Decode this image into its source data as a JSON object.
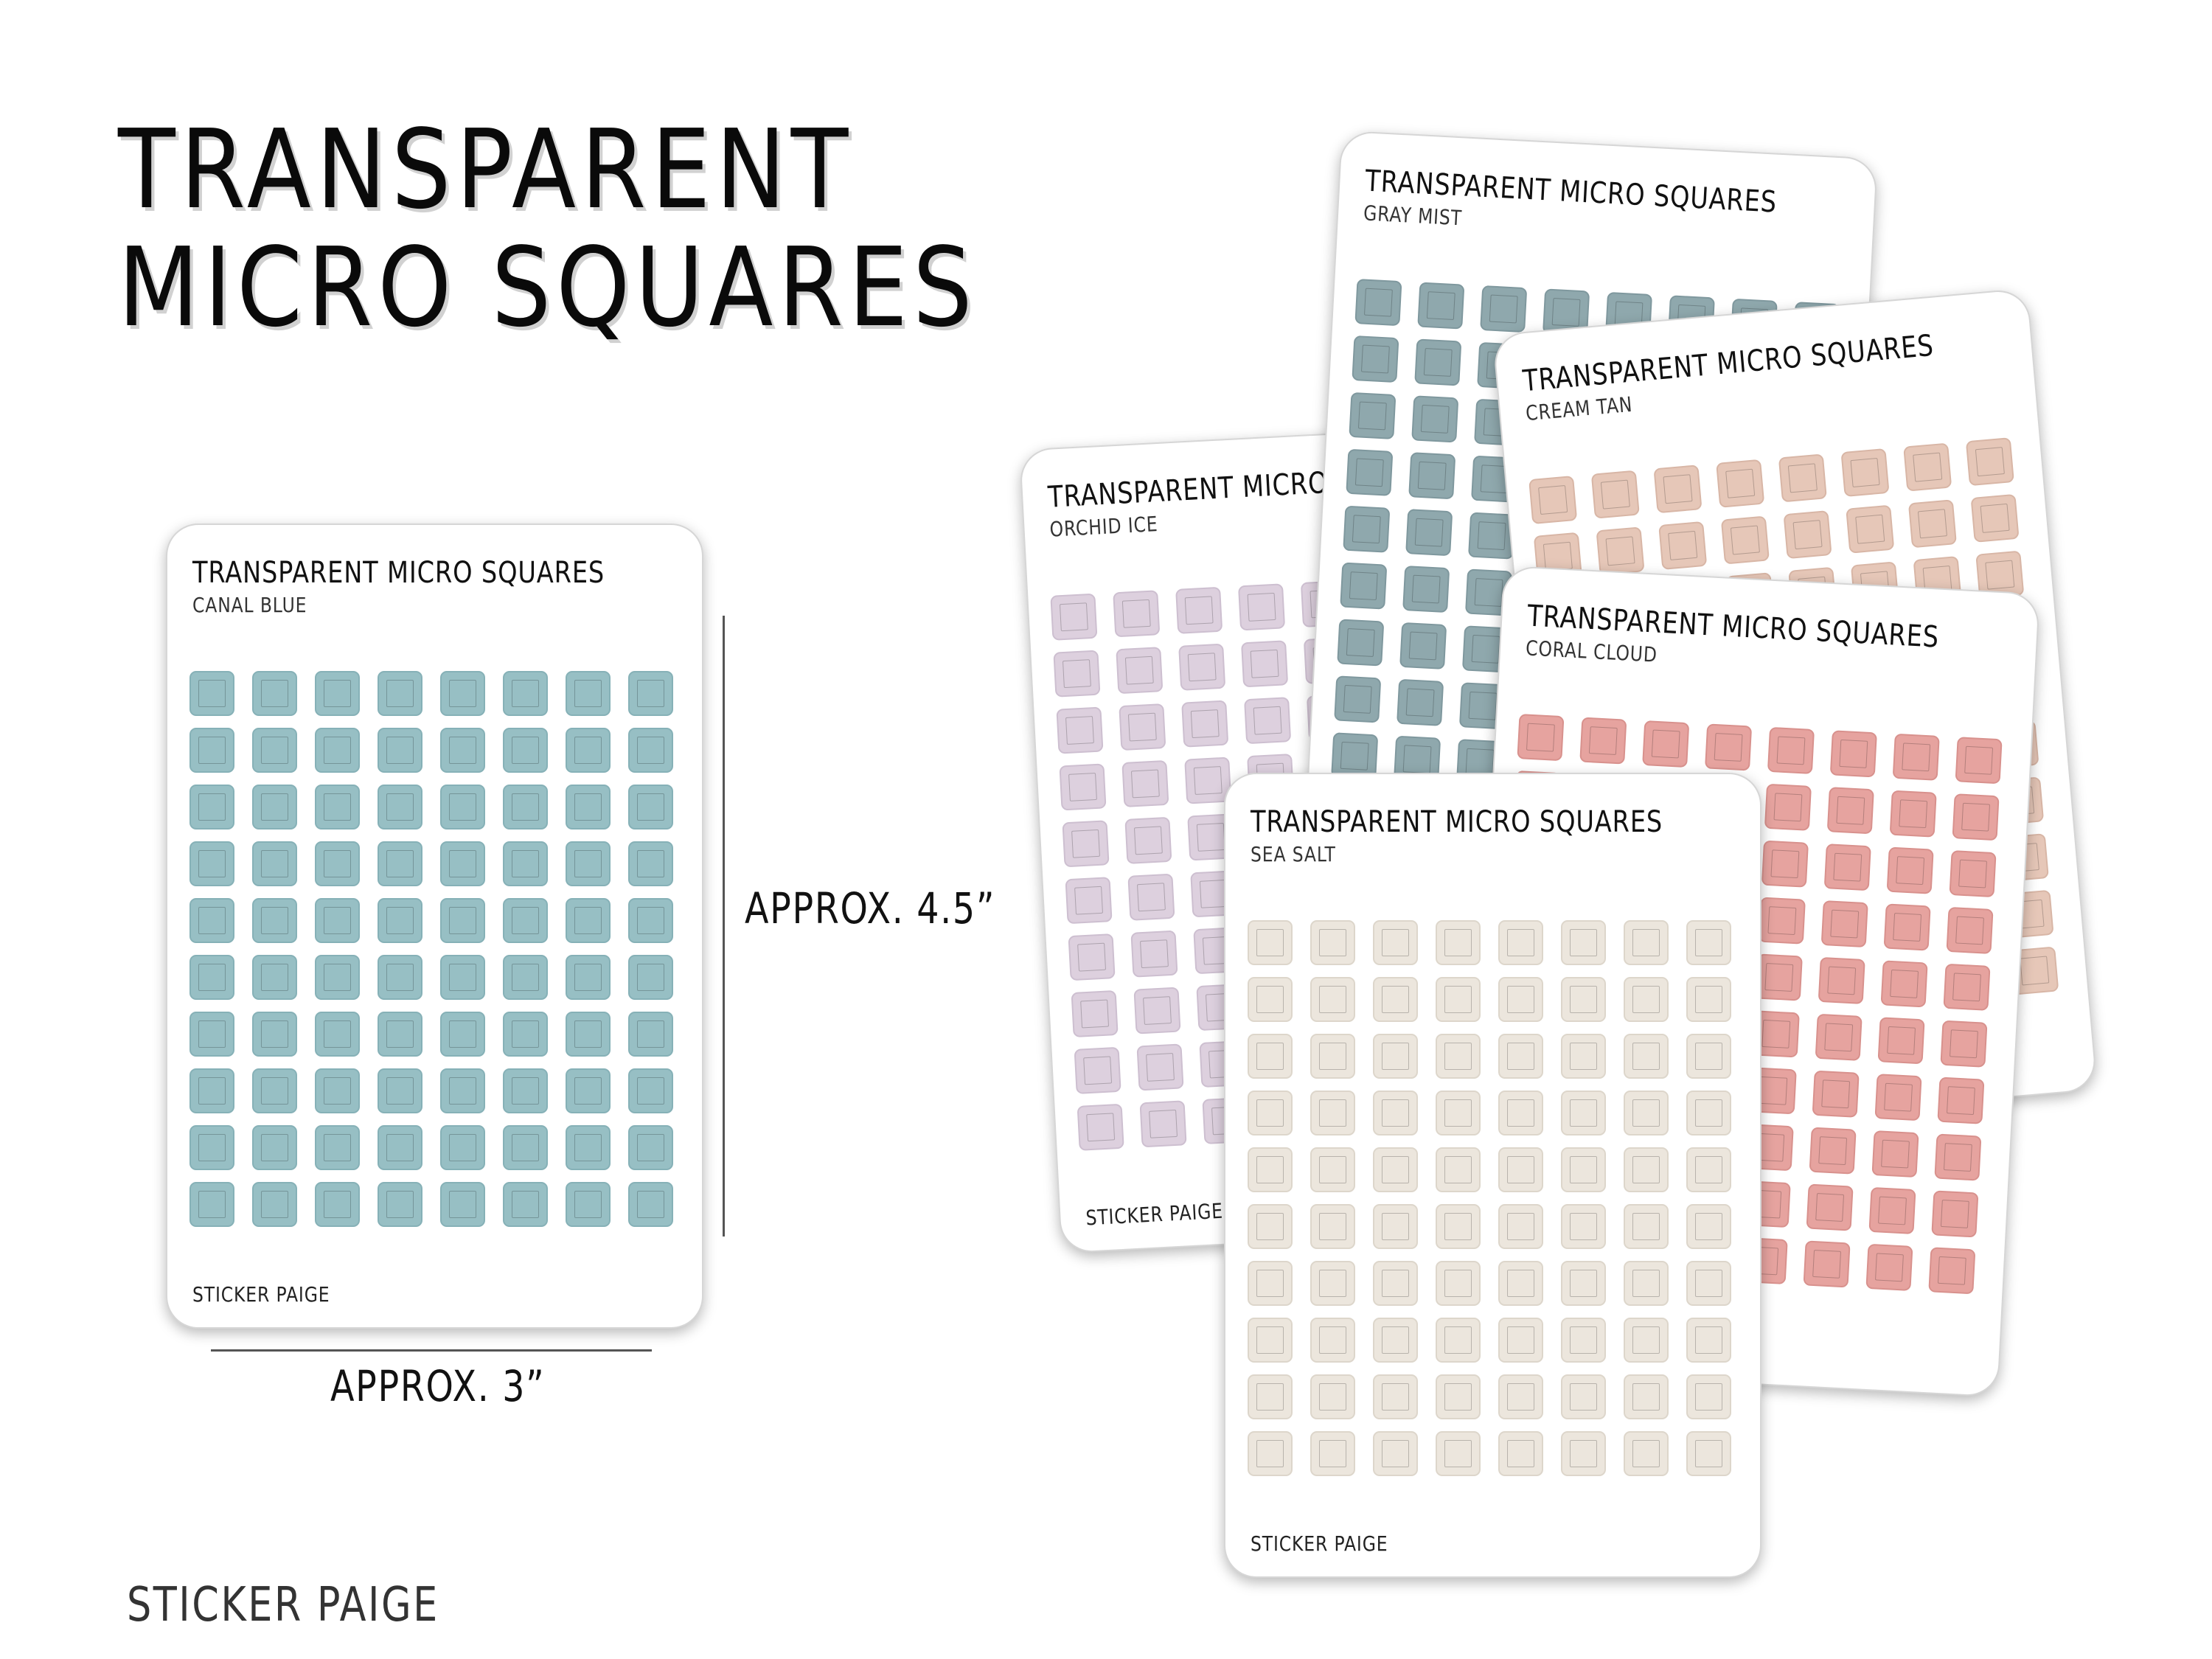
{
  "title_lines": [
    "TRANSPARENT",
    "MICRO SQUARES"
  ],
  "brand": "STICKER PAIGE",
  "dimensions": {
    "height_label": "APPROX. 4.5”",
    "width_label": "APPROX. 3”"
  },
  "sheet_title": "TRANSPARENT MICRO SQUARES",
  "sheets": [
    {
      "id": "canal-blue",
      "name": "CANAL BLUE",
      "color": "#97bfc4",
      "edge": "#86b1b7",
      "brand": "STICKER PAIGE"
    },
    {
      "id": "orchid-ice",
      "name": "ORCHID ICE",
      "color": "#ddd0de",
      "edge": "#cdbfd0",
      "brand": "STICKER PAIGE"
    },
    {
      "id": "gray-mist",
      "name": "GRAY MIST",
      "color": "#8fa8ad",
      "edge": "#7f989e"
    },
    {
      "id": "cream-tan",
      "name": "CREAM TAN",
      "color": "#e6c7b8",
      "edge": "#d8b6a6"
    },
    {
      "id": "coral-cloud",
      "name": "CORAL CLOUD",
      "color": "#e6a39f",
      "edge": "#d8918d"
    },
    {
      "id": "sea-salt",
      "name": "SEA SALT",
      "color": "#ece6dd",
      "edge": "#ddd6cb",
      "brand": "STICKER PAIGE"
    }
  ],
  "grid": {
    "columns": 8,
    "rows": 10
  }
}
